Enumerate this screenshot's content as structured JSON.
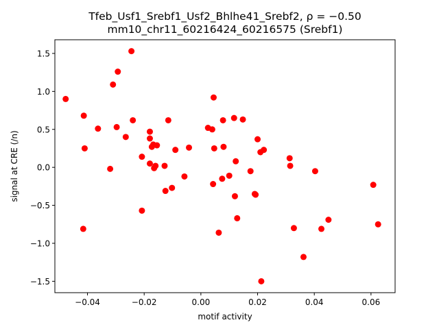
{
  "chart_data": {
    "type": "scatter",
    "title_line1": "Tfeb_Usf1_Srebf1_Usf2_Bhlhe41_Srebf2, ρ = −0.50",
    "title_line2": "mm10_chr11_60216424_60216575 (Srebf1)",
    "xlabel": "motif activity",
    "ylabel": "signal at CRE (/n)",
    "xlim": [
      -0.0515,
      0.0685
    ],
    "ylim": [
      -1.65,
      1.68
    ],
    "xticks": [
      -0.04,
      -0.02,
      0.0,
      0.02,
      0.04,
      0.06
    ],
    "xtick_labels": [
      "−0.04",
      "−0.02",
      "0.00",
      "0.02",
      "0.04",
      "0.06"
    ],
    "yticks": [
      -1.5,
      -1.0,
      -0.5,
      0.0,
      0.5,
      1.0,
      1.5
    ],
    "ytick_labels": [
      "−1.5",
      "−1.0",
      "−0.5",
      "0.0",
      "0.5",
      "1.0",
      "1.5"
    ],
    "grid": false,
    "marker_color": "#ff0000",
    "points": [
      {
        "x": -0.0477,
        "y": 0.9
      },
      {
        "x": -0.0413,
        "y": 0.68
      },
      {
        "x": -0.041,
        "y": 0.25
      },
      {
        "x": -0.0415,
        "y": -0.81
      },
      {
        "x": -0.0363,
        "y": 0.51
      },
      {
        "x": -0.032,
        "y": -0.02
      },
      {
        "x": -0.031,
        "y": 1.09
      },
      {
        "x": -0.0297,
        "y": 0.53
      },
      {
        "x": -0.0293,
        "y": 1.26
      },
      {
        "x": -0.0265,
        "y": 0.4
      },
      {
        "x": -0.0245,
        "y": 1.53
      },
      {
        "x": -0.024,
        "y": 0.62
      },
      {
        "x": -0.0208,
        "y": 0.14
      },
      {
        "x": -0.0208,
        "y": -0.57
      },
      {
        "x": -0.018,
        "y": 0.47
      },
      {
        "x": -0.018,
        "y": 0.38
      },
      {
        "x": -0.018,
        "y": 0.05
      },
      {
        "x": -0.0173,
        "y": 0.27
      },
      {
        "x": -0.0168,
        "y": 0.3
      },
      {
        "x": -0.0165,
        "y": -0.01
      },
      {
        "x": -0.016,
        "y": 0.02
      },
      {
        "x": -0.0155,
        "y": 0.29
      },
      {
        "x": -0.0128,
        "y": 0.02
      },
      {
        "x": -0.0125,
        "y": -0.31
      },
      {
        "x": -0.0115,
        "y": 0.62
      },
      {
        "x": -0.0102,
        "y": -0.27
      },
      {
        "x": -0.009,
        "y": 0.23
      },
      {
        "x": -0.0058,
        "y": -0.12
      },
      {
        "x": -0.0042,
        "y": 0.26
      },
      {
        "x": 0.0025,
        "y": 0.52
      },
      {
        "x": 0.004,
        "y": 0.5
      },
      {
        "x": 0.0043,
        "y": -0.22
      },
      {
        "x": 0.0045,
        "y": 0.92
      },
      {
        "x": 0.0047,
        "y": 0.25
      },
      {
        "x": 0.0063,
        "y": -0.86
      },
      {
        "x": 0.0075,
        "y": -0.15
      },
      {
        "x": 0.0078,
        "y": 0.62
      },
      {
        "x": 0.008,
        "y": 0.27
      },
      {
        "x": 0.01,
        "y": -0.11
      },
      {
        "x": 0.0117,
        "y": 0.65
      },
      {
        "x": 0.012,
        "y": -0.38
      },
      {
        "x": 0.0123,
        "y": 0.08
      },
      {
        "x": 0.0128,
        "y": -0.67
      },
      {
        "x": 0.0148,
        "y": 0.63
      },
      {
        "x": 0.0175,
        "y": -0.05
      },
      {
        "x": 0.019,
        "y": -0.35
      },
      {
        "x": 0.0193,
        "y": -0.36
      },
      {
        "x": 0.02,
        "y": 0.37
      },
      {
        "x": 0.021,
        "y": 0.2
      },
      {
        "x": 0.0213,
        "y": -1.5
      },
      {
        "x": 0.0222,
        "y": 0.23
      },
      {
        "x": 0.0313,
        "y": 0.12
      },
      {
        "x": 0.0315,
        "y": 0.02
      },
      {
        "x": 0.0328,
        "y": -0.8
      },
      {
        "x": 0.0362,
        "y": -1.18
      },
      {
        "x": 0.0403,
        "y": -0.05
      },
      {
        "x": 0.0425,
        "y": -0.81
      },
      {
        "x": 0.045,
        "y": -0.69
      },
      {
        "x": 0.0608,
        "y": -0.23
      },
      {
        "x": 0.0625,
        "y": -0.75
      }
    ]
  }
}
